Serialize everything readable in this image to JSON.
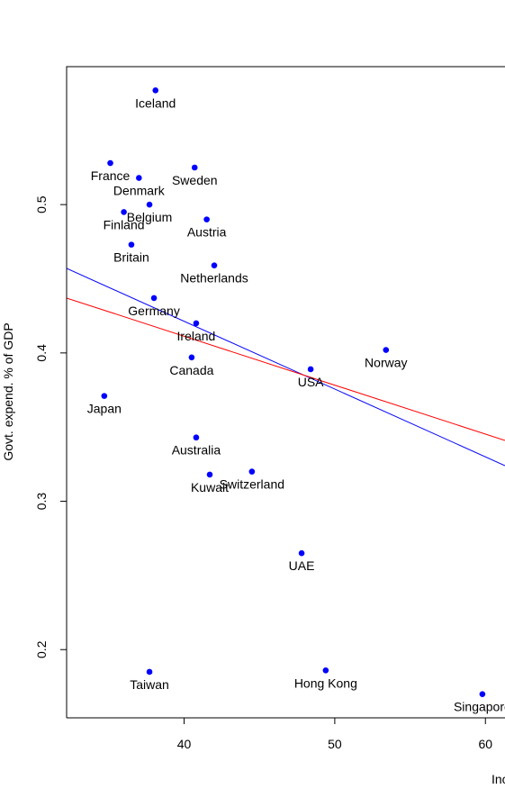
{
  "chart_data": {
    "type": "scatter",
    "title": "",
    "xlabel": "Inc",
    "ylabel": "Govt. expend. % of GDP",
    "xlim": [
      32.2,
      61.3
    ],
    "ylim": [
      0.154,
      0.593
    ],
    "x_ticks": [
      40,
      50,
      60
    ],
    "y_ticks": [
      0.2,
      0.3,
      0.4,
      0.5
    ],
    "x_tick_labels": [
      "40",
      "50",
      "60"
    ],
    "y_tick_labels": [
      "0.2",
      "0.3",
      "0.4",
      "0.5"
    ],
    "grid": false,
    "point_color": "#0000ff",
    "points": [
      {
        "label": "Iceland",
        "x": 38.1,
        "y": 0.577
      },
      {
        "label": "France",
        "x": 35.1,
        "y": 0.528
      },
      {
        "label": "Denmark",
        "x": 37.0,
        "y": 0.518
      },
      {
        "label": "Sweden",
        "x": 40.7,
        "y": 0.525
      },
      {
        "label": "Belgium",
        "x": 37.7,
        "y": 0.5
      },
      {
        "label": "Finland",
        "x": 36.0,
        "y": 0.495
      },
      {
        "label": "Austria",
        "x": 41.5,
        "y": 0.49
      },
      {
        "label": "Britain",
        "x": 36.5,
        "y": 0.473
      },
      {
        "label": "Netherlands",
        "x": 42.0,
        "y": 0.459
      },
      {
        "label": "Germany",
        "x": 38.0,
        "y": 0.437
      },
      {
        "label": "Ireland",
        "x": 40.8,
        "y": 0.42
      },
      {
        "label": "Canada",
        "x": 40.5,
        "y": 0.397
      },
      {
        "label": "USA",
        "x": 48.4,
        "y": 0.389
      },
      {
        "label": "Norway",
        "x": 53.4,
        "y": 0.402
      },
      {
        "label": "Japan",
        "x": 34.7,
        "y": 0.371
      },
      {
        "label": "Australia",
        "x": 40.8,
        "y": 0.343
      },
      {
        "label": "Kuwait",
        "x": 41.7,
        "y": 0.318
      },
      {
        "label": "Switzerland",
        "x": 44.5,
        "y": 0.32
      },
      {
        "label": "UAE",
        "x": 47.8,
        "y": 0.265
      },
      {
        "label": "Taiwan",
        "x": 37.7,
        "y": 0.185
      },
      {
        "label": "Hong Kong",
        "x": 49.4,
        "y": 0.186
      },
      {
        "label": "Singapore",
        "x": 59.8,
        "y": 0.17
      }
    ],
    "lines": [
      {
        "color": "#0000ff",
        "x": [
          32.2,
          61.3
        ],
        "y": [
          0.457,
          0.324
        ]
      },
      {
        "color": "#ff0000",
        "x": [
          32.2,
          61.3
        ],
        "y": [
          0.437,
          0.341
        ]
      }
    ]
  }
}
